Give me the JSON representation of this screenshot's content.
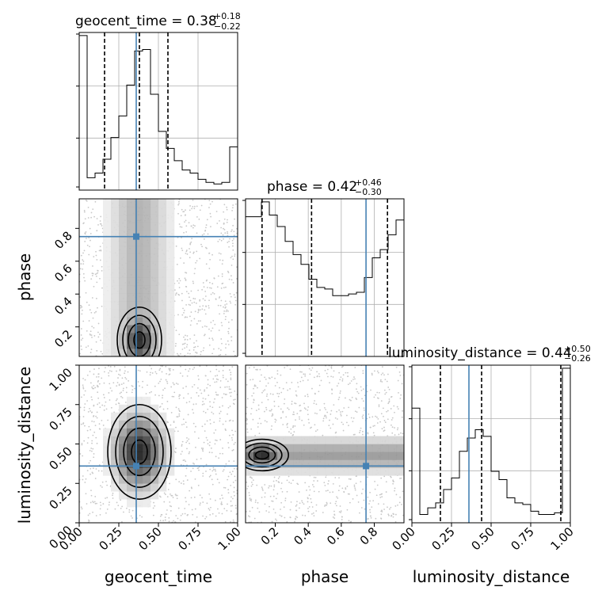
{
  "chart_data": {
    "type": "corner",
    "parameters": [
      "geocent_time",
      "phase",
      "luminosity_distance"
    ],
    "truths": {
      "geocent_time": 0.36,
      "phase": 0.75,
      "luminosity_distance": 0.36
    },
    "truth_color": "#4682b4",
    "grid": true,
    "titles": {
      "geocent_time": {
        "prefix": "geocent_time = 0.38",
        "upper": "+0.18",
        "lower": "−0.22"
      },
      "phase": {
        "prefix": "phase = 0.42",
        "upper": "+0.46",
        "lower": "−0.30"
      },
      "luminosity_distance": {
        "prefix": "luminosity_distance = 0.44",
        "upper": "+0.50",
        "lower": "−0.26"
      }
    },
    "axis_labels": {
      "x": [
        "geocent_time",
        "phase",
        "luminosity_distance"
      ],
      "y": [
        "phase",
        "luminosity_distance"
      ]
    },
    "ticks": {
      "bottom_x": [
        [
          "0.00",
          "0.25",
          "0.50",
          "0.75",
          "1.00"
        ],
        [
          "0.2",
          "0.4",
          "0.6",
          "0.8"
        ],
        [
          "0.00",
          "0.25",
          "0.50",
          "0.75",
          "1.00"
        ]
      ],
      "left_y": [
        [
          "0.2",
          "0.4",
          "0.6",
          "0.8"
        ],
        [
          "0.00",
          "0.25",
          "0.50",
          "0.75",
          "1.00"
        ]
      ]
    },
    "ranges": {
      "geocent_time": [
        0,
        1
      ],
      "phase": [
        0.02,
        0.98
      ],
      "luminosity_distance": [
        0,
        1
      ]
    },
    "histograms": [
      {
        "param": "geocent_time",
        "bin_edges": [
          0,
          0.05,
          0.1,
          0.15,
          0.2,
          0.25,
          0.3,
          0.35,
          0.4,
          0.45,
          0.5,
          0.55,
          0.6,
          0.65,
          0.7,
          0.75,
          0.8,
          0.85,
          0.9,
          0.95,
          1.0
        ],
        "values": [
          1.0,
          0.08,
          0.11,
          0.2,
          0.34,
          0.48,
          0.68,
          0.9,
          0.91,
          0.62,
          0.38,
          0.27,
          0.19,
          0.13,
          0.11,
          0.07,
          0.05,
          0.04,
          0.05,
          0.28
        ],
        "quantiles": [
          0.16,
          0.38,
          0.56
        ]
      },
      {
        "param": "phase",
        "bin_edges": [
          0.02,
          0.068,
          0.116,
          0.164,
          0.212,
          0.26,
          0.308,
          0.356,
          0.404,
          0.452,
          0.5,
          0.548,
          0.596,
          0.644,
          0.692,
          0.74,
          0.788,
          0.836,
          0.884,
          0.932,
          0.98
        ],
        "values": [
          0.85,
          0.85,
          0.94,
          0.86,
          0.79,
          0.7,
          0.62,
          0.56,
          0.47,
          0.42,
          0.41,
          0.37,
          0.37,
          0.38,
          0.39,
          0.48,
          0.6,
          0.65,
          0.74,
          0.83
        ],
        "quantiles": [
          0.12,
          0.42,
          0.88
        ]
      },
      {
        "param": "luminosity_distance",
        "bin_edges": [
          0,
          0.05,
          0.1,
          0.15,
          0.2,
          0.25,
          0.3,
          0.35,
          0.4,
          0.45,
          0.5,
          0.55,
          0.6,
          0.65,
          0.7,
          0.75,
          0.8,
          0.85,
          0.9,
          0.95,
          1.0
        ],
        "values": [
          0.69,
          0.05,
          0.09,
          0.12,
          0.2,
          0.27,
          0.43,
          0.51,
          0.56,
          0.52,
          0.31,
          0.26,
          0.15,
          0.12,
          0.11,
          0.07,
          0.05,
          0.05,
          0.06,
          0.93
        ],
        "quantiles": [
          0.18,
          0.44,
          0.94
        ]
      }
    ],
    "density_2d": [
      {
        "x": "geocent_time",
        "y": "phase",
        "center": [
          0.38,
          0.12
        ],
        "spread": [
          0.07,
          0.1
        ],
        "vertical_band": true
      },
      {
        "x": "geocent_time",
        "y": "luminosity_distance",
        "center": [
          0.38,
          0.45
        ],
        "spread": [
          0.1,
          0.15
        ]
      },
      {
        "x": "phase",
        "y": "luminosity_distance",
        "center": [
          0.12,
          0.43
        ],
        "spread": [
          0.08,
          0.05
        ],
        "horizontal_band": true
      }
    ]
  }
}
